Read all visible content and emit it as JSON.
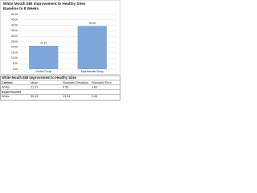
{
  "chart_data": {
    "type": "bar",
    "title": "White Mouth EIB Improvement to Healthy Sites",
    "subtitle": "Baseline to 8 Weeks",
    "categories": [
      "Control Group",
      "Experimental Group"
    ],
    "values": [
      21.37,
      39.45
    ],
    "color": "#7ea6d8",
    "ylim": [
      0,
      50
    ],
    "yticks": [
      {
        "value": 0,
        "label": "0.00"
      },
      {
        "value": 5,
        "label": "5.00"
      },
      {
        "value": 10,
        "label": "10.00"
      },
      {
        "value": 15,
        "label": "15.00"
      },
      {
        "value": 20,
        "label": "20.00"
      },
      {
        "value": 25,
        "label": "25.00"
      },
      {
        "value": 30,
        "label": "30.00"
      },
      {
        "value": 35,
        "label": "35.00"
      },
      {
        "value": 40,
        "label": "40.00"
      },
      {
        "value": 45,
        "label": "45.00"
      },
      {
        "value": 50,
        "label": "50.00"
      }
    ],
    "grid": true
  },
  "table": {
    "title": "White Mouth EIB Improvement to Healthy Sites",
    "rows": [
      [
        "Control",
        "Mean",
        "Standard Deviation",
        "Standard Error"
      ],
      [
        "White",
        "21.37",
        "9.56",
        "1.82"
      ],
      [
        "Experimental"
      ],
      [
        "White",
        "39.45",
        "13.94",
        "2.65"
      ]
    ]
  }
}
